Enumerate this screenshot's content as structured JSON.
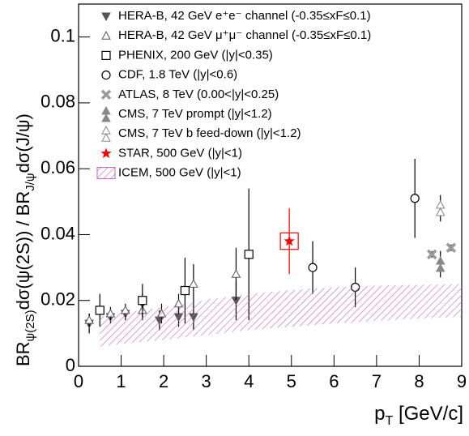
{
  "chart_data": {
    "type": "scatter",
    "xlabel_parts": [
      "p",
      "T",
      " [GeV/c]"
    ],
    "ylabel_parts": [
      "BR",
      "ψ(2S)",
      "dσ(ψ(2S)) / BR",
      "J/ψ",
      "dσ(J/ψ)"
    ],
    "xlim": [
      0,
      9
    ],
    "xticks": [
      0,
      1,
      2,
      3,
      4,
      5,
      6,
      7,
      8,
      9
    ],
    "ylim": [
      0,
      0.11
    ],
    "yticks": [
      0,
      0.02,
      0.04,
      0.06,
      0.08,
      0.1
    ],
    "series": [
      {
        "name": "HERA-B, 42 GeV e⁺e⁻ channel (-0.35≤xF≤0.1)",
        "marker": "down-triangle",
        "color": "#555555",
        "x": [
          0.25,
          0.75,
          1.1,
          1.5,
          1.9,
          2.35,
          2.7,
          3.7
        ],
        "values": [
          0.013,
          0.015,
          0.016,
          0.019,
          0.014,
          0.015,
          0.015,
          0.02
        ],
        "errors": [
          0.003,
          0.002,
          0.002,
          0.003,
          0.003,
          0.003,
          0.004,
          0.006
        ]
      },
      {
        "name": "HERA-B, 42 GeV μ⁺μ⁻ channel (-0.35≤xF≤0.1)",
        "marker": "open-triangle",
        "color": "#555555",
        "x": [
          0.25,
          0.75,
          1.1,
          1.5,
          1.95,
          2.35,
          2.7,
          3.7
        ],
        "values": [
          0.014,
          0.016,
          0.017,
          0.017,
          0.016,
          0.019,
          0.025,
          0.028
        ],
        "errors": [
          0.002,
          0.002,
          0.002,
          0.003,
          0.003,
          0.003,
          0.006,
          0.008
        ]
      },
      {
        "name": "PHENIX, 200 GeV (|y|<0.35)",
        "marker": "open-square",
        "color": "#000000",
        "x": [
          0.5,
          1.5,
          2.5,
          4.0
        ],
        "values": [
          0.017,
          0.02,
          0.023,
          0.034
        ],
        "errors": [
          0.005,
          0.005,
          0.01,
          0.02
        ]
      },
      {
        "name": "CDF, 1.8 TeV (|y|<0.6)",
        "marker": "open-circle",
        "color": "#000000",
        "x": [
          5.5,
          6.5,
          7.9
        ],
        "values": [
          0.03,
          0.024,
          0.051
        ],
        "errors": [
          0.008,
          0.006,
          0.012
        ]
      },
      {
        "name": "ATLAS, 8 TeV (0.00<|y|<0.25)",
        "marker": "cross",
        "color": "#999999",
        "x": [
          8.3,
          8.75
        ],
        "values": [
          0.034,
          0.036
        ],
        "errors": [
          0.001,
          0.001
        ]
      },
      {
        "name": "CMS, 7 TeV prompt (|y|<1.2)",
        "marker": "triangle-pair",
        "color": "#888888",
        "x": [
          8.5
        ],
        "values": [
          0.031
        ],
        "errors": [
          0.004
        ]
      },
      {
        "name": "CMS, 7 TeV b feed-down (|y|<1.2)",
        "marker": "open-triangle-pair",
        "color": "#888888",
        "x": [
          8.5
        ],
        "values": [
          0.048
        ],
        "errors": [
          0.004
        ]
      },
      {
        "name": "STAR, 500 GeV (|y|<1)",
        "marker": "star",
        "color": "#ff0000",
        "x": [
          4.95
        ],
        "values": [
          0.038
        ],
        "errors": [
          0.01
        ],
        "sys_errors": [
          0.0025
        ]
      },
      {
        "name": "ICEM, 500 GeV (|y|<1)",
        "marker": "band",
        "color": "#c060c0",
        "x": [
          0.5,
          1,
          2,
          3,
          4,
          5,
          6,
          7,
          8,
          9
        ],
        "lower": [
          0.006,
          0.0068,
          0.008,
          0.0095,
          0.011,
          0.012,
          0.013,
          0.0138,
          0.0145,
          0.015
        ],
        "upper": [
          0.015,
          0.0162,
          0.018,
          0.0202,
          0.022,
          0.0232,
          0.024,
          0.0245,
          0.0248,
          0.025
        ]
      }
    ]
  }
}
